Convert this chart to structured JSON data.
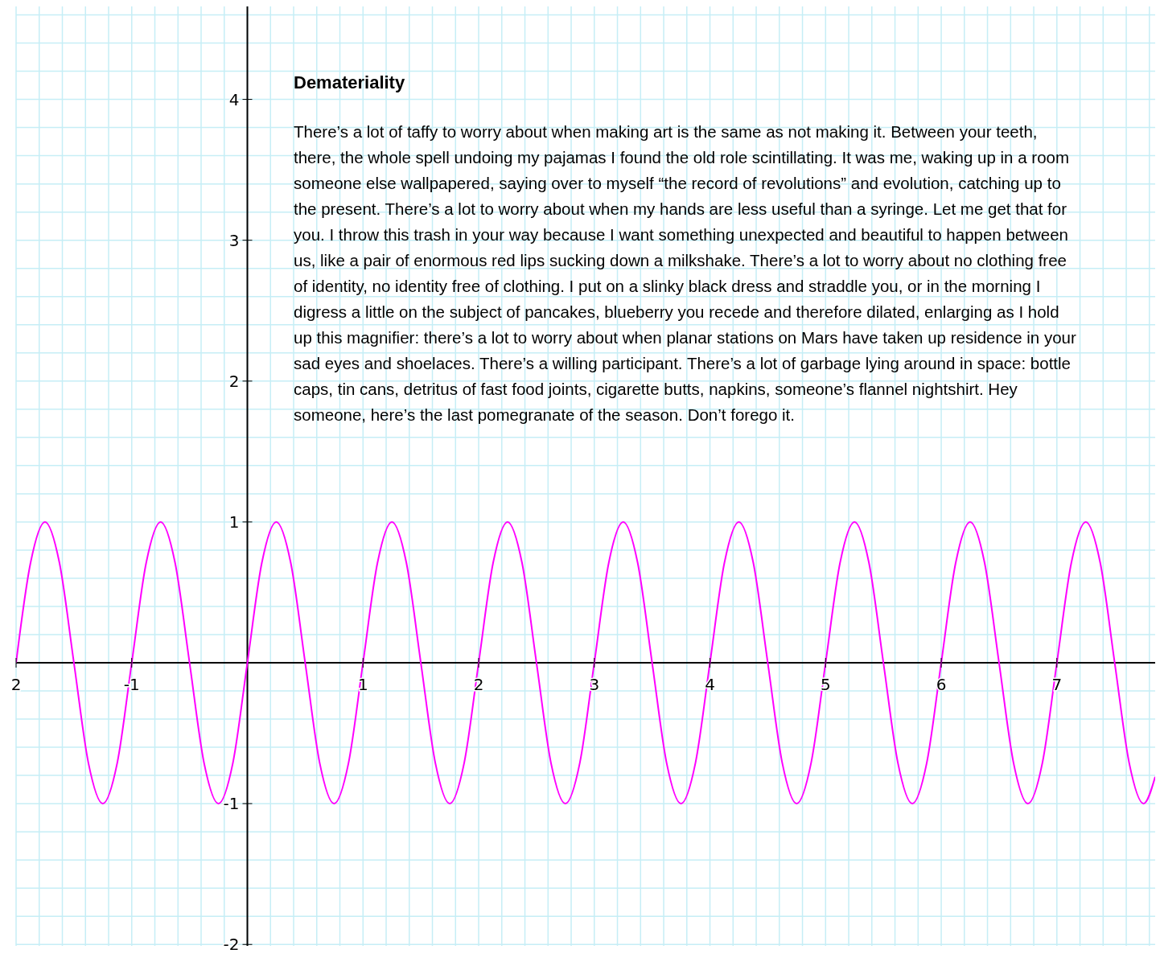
{
  "chart_data": {
    "type": "line",
    "title": "Demateriality",
    "annotations": [
      "There’s a lot of taffy to worry about when making art is the same as not making it. Between your teeth, there, the whole spell undoing my pajamas I found the old role scintillating. It was me, waking up in a room someone else wallpapered, saying over to myself “the record of revolutions” and evolution, catching up to the present. There’s a lot to worry about when my hands are less useful than a syringe. Let me get that for you. I throw this trash in your way because I want something unexpected and beautiful to happen between us, like a pair of enormous red lips sucking down a milkshake. There’s a lot to worry about no clothing free of identity, no identity free of clothing. I put on a slinky black dress and straddle you, or in the morning I digress a little on the subject of pancakes, blueberry you recede and therefore dilated, enlarging as I hold up this magnifier: there’s a lot to worry about when planar stations on Mars have taken up residence in your sad eyes and shoelaces. There’s a willing participant. There’s a lot of garbage lying around in space: bottle caps, tin cans, detritus of fast food joints, cigarette butts, napkins, someone’s flannel nightshirt. Hey someone, here’s the last pomegranate of the season. Don’t forego it."
    ],
    "x": [
      -2,
      -1.875,
      -1.75,
      -1.625,
      -1.5,
      -1.375,
      -1.25,
      -1.125,
      -1,
      -0.875,
      -0.75,
      -0.625,
      -0.5,
      -0.375,
      -0.25,
      -0.125,
      0,
      0.125,
      0.25,
      0.375,
      0.5,
      0.625,
      0.75,
      0.875,
      1,
      1.125,
      1.25,
      1.375,
      1.5,
      1.625,
      1.75,
      1.875,
      2,
      2.125,
      2.25,
      2.375,
      2.5,
      2.625,
      2.75,
      2.875,
      3,
      3.125,
      3.25,
      3.375,
      3.5,
      3.625,
      3.75,
      3.875,
      4,
      4.125,
      4.25,
      4.375,
      4.5,
      4.625,
      4.75,
      4.875,
      5,
      5.125,
      5.25,
      5.375,
      5.5,
      5.625,
      5.75,
      5.875,
      6,
      6.125,
      6.25,
      6.375,
      6.5,
      6.625,
      6.75,
      6.875,
      7,
      7.125,
      7.25,
      7.375,
      7.5,
      7.625,
      7.75,
      7.85
    ],
    "series": [
      {
        "color": "#ff00ff",
        "values": [
          0,
          0.71,
          1,
          0.71,
          0,
          -0.71,
          -1,
          -0.71,
          0,
          0.71,
          1,
          0.71,
          0,
          -0.71,
          -1,
          -0.71,
          0,
          0.71,
          1,
          0.71,
          0,
          -0.71,
          -1,
          -0.71,
          0,
          0.71,
          1,
          0.71,
          0,
          -0.71,
          -1,
          -0.71,
          0,
          0.71,
          1,
          0.71,
          0,
          -0.71,
          -1,
          -0.71,
          0,
          0.71,
          1,
          0.71,
          0,
          -0.71,
          -1,
          -0.71,
          0,
          0.71,
          1,
          0.71,
          0,
          -0.71,
          -1,
          -0.71,
          0,
          0.71,
          1,
          0.71,
          0,
          -0.71,
          -1,
          -0.71,
          0,
          0.71,
          1,
          0.71,
          0,
          -0.71,
          -1,
          -0.71,
          0,
          0.71,
          1,
          0.71,
          0,
          -0.71,
          -1,
          -0.81
        ]
      }
    ],
    "xlim": [
      -2,
      7.85
    ],
    "ylim": [
      -2.01,
      4.66
    ],
    "xticks": [
      {
        "value": -2,
        "label": "2"
      },
      {
        "value": -1.8,
        "label": null
      },
      {
        "value": -1.6,
        "label": null
      },
      {
        "value": -1.4,
        "label": null
      },
      {
        "value": -1.2,
        "label": null
      },
      -1,
      {
        "value": -0.8,
        "label": null
      },
      {
        "value": -0.6,
        "label": null
      },
      {
        "value": -0.4,
        "label": null
      },
      {
        "value": -0.2,
        "label": null
      },
      {
        "value": 0,
        "label": null
      },
      {
        "value": 0.2,
        "label": null
      },
      {
        "value": 0.4,
        "label": null
      },
      {
        "value": 0.6,
        "label": null
      },
      {
        "value": 0.8,
        "label": null
      },
      1,
      {
        "value": 1.2,
        "label": null
      },
      {
        "value": 1.4,
        "label": null
      },
      {
        "value": 1.6,
        "label": null
      },
      {
        "value": 1.8,
        "label": null
      },
      2,
      {
        "value": 2.2,
        "label": null
      },
      {
        "value": 2.4,
        "label": null
      },
      {
        "value": 2.6,
        "label": null
      },
      {
        "value": 2.8,
        "label": null
      },
      3,
      {
        "value": 3.2,
        "label": null
      },
      {
        "value": 3.4,
        "label": null
      },
      {
        "value": 3.6,
        "label": null
      },
      {
        "value": 3.8,
        "label": null
      },
      4,
      {
        "value": 4.2,
        "label": null
      },
      {
        "value": 4.4,
        "label": null
      },
      {
        "value": 4.6,
        "label": null
      },
      {
        "value": 4.8,
        "label": null
      },
      5,
      {
        "value": 5.2,
        "label": null
      },
      {
        "value": 5.4,
        "label": null
      },
      {
        "value": 5.6,
        "label": null
      },
      {
        "value": 5.8,
        "label": null
      },
      6,
      {
        "value": 6.2,
        "label": null
      },
      {
        "value": 6.4,
        "label": null
      },
      {
        "value": 6.6,
        "label": null
      },
      {
        "value": 6.8,
        "label": null
      },
      7,
      {
        "value": 7.2,
        "label": null
      },
      {
        "value": 7.4,
        "label": null
      },
      {
        "value": 7.6,
        "label": null
      },
      {
        "value": 7.8,
        "label": null
      }
    ],
    "yticks": [
      -2,
      {
        "value": -1.8,
        "label": null
      },
      {
        "value": -1.6,
        "label": null
      },
      {
        "value": -1.4,
        "label": null
      },
      {
        "value": -1.2,
        "label": null
      },
      -1,
      {
        "value": -0.8,
        "label": null
      },
      {
        "value": -0.6,
        "label": null
      },
      {
        "value": -0.4,
        "label": null
      },
      {
        "value": -0.2,
        "label": null
      },
      {
        "value": 0,
        "label": null
      },
      {
        "value": 0.2,
        "label": null
      },
      {
        "value": 0.4,
        "label": null
      },
      {
        "value": 0.6,
        "label": null
      },
      {
        "value": 0.8,
        "label": null
      },
      1,
      {
        "value": 1.2,
        "label": null
      },
      {
        "value": 1.4,
        "label": null
      },
      {
        "value": 1.6,
        "label": null
      },
      {
        "value": 1.8,
        "label": null
      },
      2,
      {
        "value": 2.2,
        "label": null
      },
      {
        "value": 2.4,
        "label": null
      },
      {
        "value": 2.6,
        "label": null
      },
      {
        "value": 2.8,
        "label": null
      },
      3,
      {
        "value": 3.2,
        "label": null
      },
      {
        "value": 3.4,
        "label": null
      },
      {
        "value": 3.6,
        "label": null
      },
      {
        "value": 3.8,
        "label": null
      },
      4,
      {
        "value": 4.2,
        "label": null
      },
      {
        "value": 4.4,
        "label": null
      },
      {
        "value": 4.6,
        "label": null
      }
    ],
    "grid": true,
    "legend": false,
    "marker": "none",
    "line_style": "solid"
  }
}
